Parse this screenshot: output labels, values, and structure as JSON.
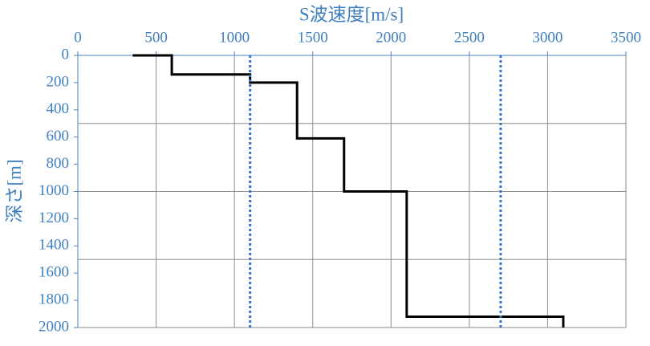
{
  "chart_data": {
    "type": "line",
    "title": "S波速度[m/s]",
    "y_label": "深さ[m]",
    "xlim": [
      0,
      3500
    ],
    "xticks": [
      0,
      500,
      1000,
      1500,
      2000,
      2500,
      3000,
      3500
    ],
    "ylim": [
      0,
      2000
    ],
    "yticks": [
      0,
      200,
      400,
      600,
      800,
      1000,
      1200,
      1400,
      1600,
      1800,
      2000
    ],
    "y_inverted": true,
    "x_axis_position": "top",
    "ygridlines": [
      500,
      1000,
      1500,
      2000
    ],
    "grid": true,
    "series": [
      {
        "color": "#000000",
        "style": "solid",
        "x": [
          350,
          600,
          600,
          1100,
          1100,
          1400,
          1400,
          1700,
          1700,
          2100,
          2100,
          3100,
          3100
        ],
        "y": [
          0,
          0,
          140,
          140,
          200,
          200,
          610,
          610,
          1000,
          1000,
          1920,
          1920,
          2000
        ]
      },
      {
        "color": "#3a72c8",
        "style": "dotted",
        "x": [
          1100,
          1100
        ],
        "y": [
          0,
          2000
        ]
      },
      {
        "color": "#3a72c8",
        "style": "dotted",
        "x": [
          2700,
          2700
        ],
        "y": [
          0,
          2000
        ]
      }
    ]
  }
}
